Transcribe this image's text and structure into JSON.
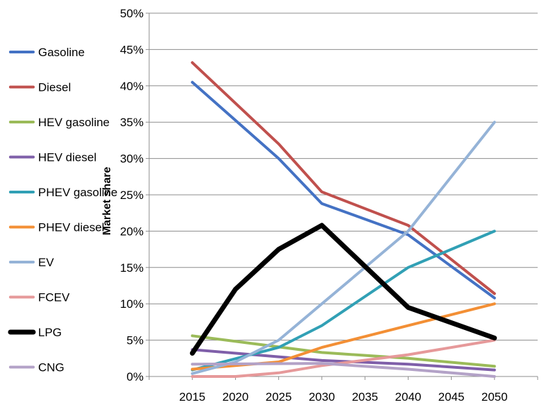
{
  "chart_data": {
    "type": "line",
    "title": "",
    "xlabel": "",
    "ylabel": "Market share",
    "x": [
      2015,
      2020,
      2025,
      2030,
      2035,
      2040,
      2045,
      2050
    ],
    "xlim": [
      2010,
      2055
    ],
    "ylim": [
      0,
      50
    ],
    "yticks": [
      "0%",
      "5%",
      "10%",
      "15%",
      "20%",
      "25%",
      "30%",
      "35%",
      "40%",
      "45%",
      "50%"
    ],
    "xticks": [
      "2015",
      "2020",
      "2025",
      "2030",
      "2035",
      "2040",
      "2045",
      "2050"
    ],
    "grid": "horizontal",
    "legend_position": "left",
    "series": [
      {
        "name": "Gasoline",
        "color": "#4472C4",
        "points": [
          [
            2015,
            40.5
          ],
          [
            2025,
            30
          ],
          [
            2030,
            23.8
          ],
          [
            2040,
            19.5
          ],
          [
            2050,
            10.8
          ]
        ]
      },
      {
        "name": "Diesel",
        "color": "#C0504D",
        "points": [
          [
            2015,
            43.2
          ],
          [
            2025,
            32
          ],
          [
            2030,
            25.4
          ],
          [
            2040,
            20.8
          ],
          [
            2050,
            11.4
          ]
        ]
      },
      {
        "name": "HEV gasoline",
        "color": "#9BBB59",
        "points": [
          [
            2015,
            5.6
          ],
          [
            2030,
            3.3
          ],
          [
            2040,
            2.5
          ],
          [
            2050,
            1.4
          ]
        ]
      },
      {
        "name": "HEV diesel",
        "color": "#7F5FA9",
        "points": [
          [
            2015,
            3.7
          ],
          [
            2030,
            2.2
          ],
          [
            2040,
            1.7
          ],
          [
            2050,
            0.9
          ]
        ]
      },
      {
        "name": "PHEV gasoline",
        "color": "#31A0B5",
        "points": [
          [
            2015,
            0.9
          ],
          [
            2025,
            4
          ],
          [
            2030,
            7
          ],
          [
            2040,
            15
          ],
          [
            2050,
            20
          ]
        ]
      },
      {
        "name": "PHEV diesel",
        "color": "#F38F35",
        "points": [
          [
            2015,
            1
          ],
          [
            2025,
            2
          ],
          [
            2030,
            4
          ],
          [
            2040,
            7
          ],
          [
            2050,
            10
          ]
        ]
      },
      {
        "name": "EV",
        "color": "#95B3D7",
        "points": [
          [
            2015,
            0.4
          ],
          [
            2020,
            2
          ],
          [
            2025,
            5
          ],
          [
            2030,
            10
          ],
          [
            2040,
            20
          ],
          [
            2050,
            35
          ]
        ]
      },
      {
        "name": "FCEV",
        "color": "#E6999A",
        "points": [
          [
            2015,
            0
          ],
          [
            2020,
            0
          ],
          [
            2025,
            0.5
          ],
          [
            2030,
            1.5
          ],
          [
            2040,
            3
          ],
          [
            2050,
            5
          ]
        ]
      },
      {
        "name": "LPG",
        "color": "#000000",
        "points": [
          [
            2015,
            3.2
          ],
          [
            2020,
            12
          ],
          [
            2025,
            17.5
          ],
          [
            2030,
            20.8
          ],
          [
            2040,
            9.5
          ],
          [
            2050,
            5.3
          ]
        ]
      },
      {
        "name": "CNG",
        "color": "#B3A2C7",
        "points": [
          [
            2015,
            1.7
          ],
          [
            2030,
            1.8
          ],
          [
            2040,
            1
          ],
          [
            2050,
            0
          ]
        ]
      }
    ]
  }
}
